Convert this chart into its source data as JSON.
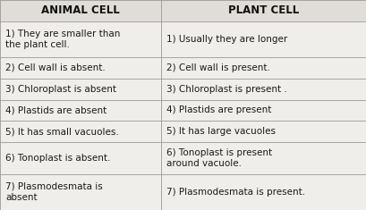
{
  "title_left": "ANIMAL CELL",
  "title_right": "PLANT CELL",
  "rows": [
    [
      "1) They are smaller than\nthe plant cell.",
      "1) Usually they are longer"
    ],
    [
      "2) Cell wall is absent.",
      "2) Cell wall is present."
    ],
    [
      "3) Chloroplast is absent",
      "3) Chloroplast is present ."
    ],
    [
      "4) Plastids are absent",
      "4) Plastids are present"
    ],
    [
      "5) It has small vacuoles.",
      "5) It has large vacuoles"
    ],
    [
      "6) Tonoplast is absent.",
      "6) Tonoplast is present\naround vacuole."
    ],
    [
      "7) Plasmodesmata is\nabsent",
      "7) Plasmodesmata is present."
    ]
  ],
  "bg_color": "#d8d8d8",
  "cell_bg": "#f0eeea",
  "header_bg": "#e0ddd8",
  "line_color": "#999999",
  "text_color": "#1a1a1a",
  "header_text_color": "#111111",
  "font_size": 7.5,
  "header_font_size": 8.5,
  "col_split": 0.44,
  "row_heights_raw": [
    1.0,
    1.7,
    1.0,
    1.0,
    1.0,
    1.0,
    1.5,
    1.7
  ]
}
